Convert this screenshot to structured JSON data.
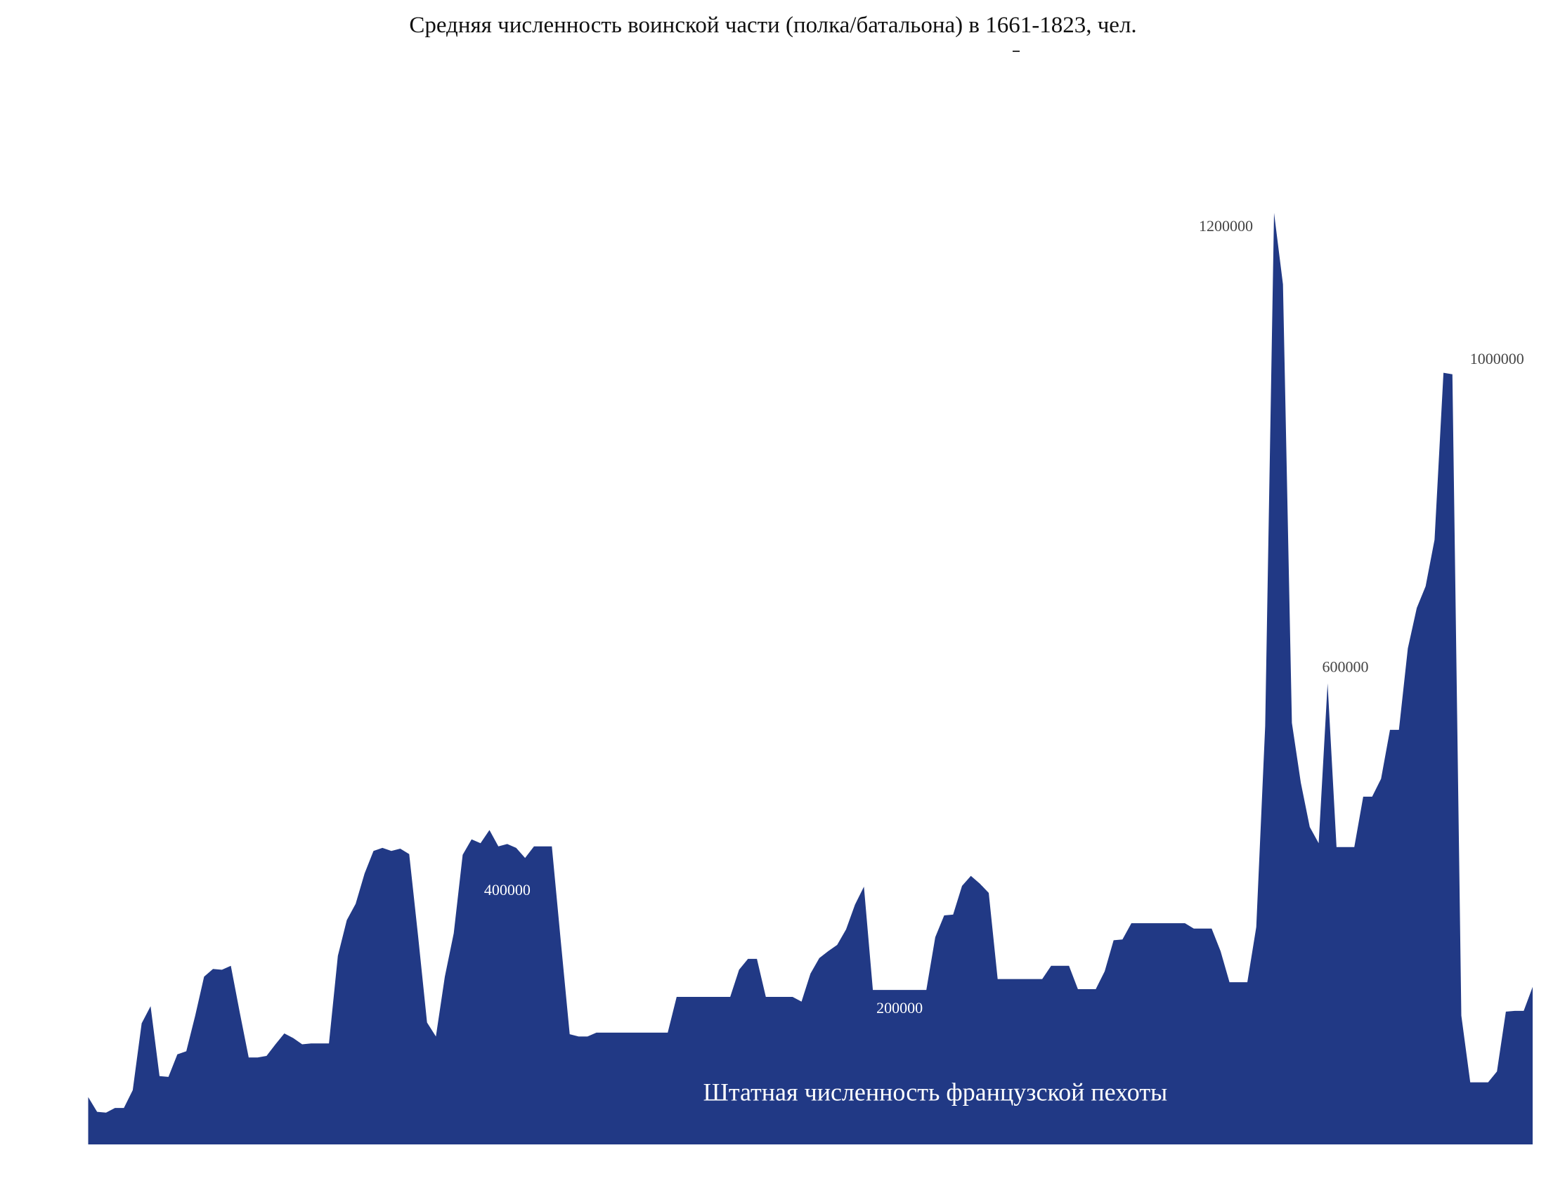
{
  "chart_data": {
    "type": "area",
    "title": "Средняя численность воинской части (полка/батальона) в 1661-1823, чел.",
    "xlabel": "",
    "ylabel": "",
    "xlim": [
      1661,
      1823
    ],
    "ylim": [
      0,
      1200000
    ],
    "grid": false,
    "legend": "none",
    "color": "#213985",
    "series": [
      {
        "name": "Штатная численность французской пехоты",
        "x_start": 1661,
        "x_step": 1,
        "values": [
          61000,
          42000,
          41000,
          47000,
          47000,
          70000,
          156000,
          178000,
          88000,
          87000,
          116000,
          120000,
          166000,
          216000,
          226000,
          225000,
          230000,
          170000,
          112000,
          112000,
          114000,
          129000,
          143000,
          137000,
          129000,
          130000,
          130000,
          130000,
          243000,
          289000,
          310000,
          349000,
          378000,
          382000,
          378000,
          381000,
          374000,
          268000,
          157000,
          139000,
          216000,
          272000,
          373000,
          393000,
          388000,
          405000,
          384000,
          387000,
          382000,
          369000,
          384000,
          384000,
          384000,
          262000,
          142000,
          139000,
          139000,
          144000,
          144000,
          144000,
          144000,
          144000,
          144000,
          144000,
          144000,
          144000,
          190000,
          190000,
          190000,
          190000,
          190000,
          190000,
          190000,
          225000,
          239000,
          239000,
          190000,
          190000,
          190000,
          190000,
          184000,
          220000,
          240000,
          249000,
          257000,
          277000,
          309000,
          332000,
          199000,
          199000,
          199000,
          199000,
          199000,
          199000,
          199000,
          267000,
          295000,
          296000,
          333000,
          346000,
          336000,
          324000,
          213000,
          213000,
          213000,
          213000,
          213000,
          213000,
          230000,
          230000,
          230000,
          200000,
          200000,
          200000,
          223000,
          263000,
          264000,
          285000,
          285000,
          285000,
          285000,
          285000,
          285000,
          285000,
          278000,
          278000,
          278000,
          249000,
          209000,
          209000,
          209000,
          280000,
          539000,
          1200000,
          1108000,
          543000,
          466000,
          409000,
          388000,
          594000,
          383000,
          383000,
          383000,
          448000,
          448000,
          471000,
          534000,
          534000,
          639000,
          691000,
          719000,
          779000,
          994000,
          992000,
          166000,
          80000,
          80000,
          80000,
          94000,
          171000,
          172000,
          172000,
          203000
        ]
      }
    ],
    "annotations": [
      {
        "text": "1200000",
        "x": 1788.6,
        "y": 1181000,
        "color": "#444444"
      },
      {
        "text": "1000000",
        "x": 1819,
        "y": 1010000,
        "color": "#444444"
      },
      {
        "text": "600000",
        "x": 1802,
        "y": 613000,
        "color": "#444444"
      },
      {
        "text": "400000",
        "x": 1708,
        "y": 326000,
        "color": "#ffffff"
      },
      {
        "text": "200000",
        "x": 1752,
        "y": 174000,
        "color": "#ffffff"
      }
    ],
    "series_label": {
      "x": 1756,
      "y": 64000,
      "color": "#ffffff"
    }
  }
}
